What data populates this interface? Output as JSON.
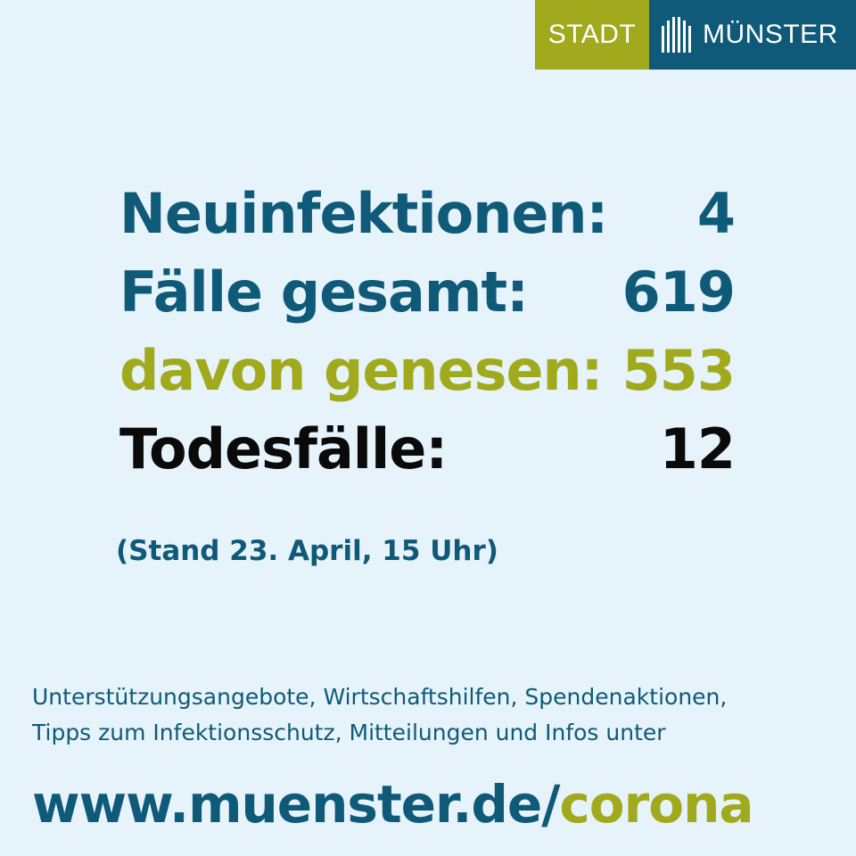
{
  "logo": {
    "stadt": "STADT",
    "muenster": "MÜNSTER",
    "icon": "muenster-cathedral-logo-icon",
    "colors": {
      "stadt_bg": "#a0aa1c",
      "muenster_bg": "#0f5a78"
    }
  },
  "stats": [
    {
      "label": "Neuinfektionen:",
      "value": "4",
      "color": "#0f5a78"
    },
    {
      "label": "Fälle gesamt:",
      "value": "619",
      "color": "#0f5a78"
    },
    {
      "label": "davon genesen:",
      "value": "553",
      "color": "#a0aa1c"
    },
    {
      "label": "Todesfälle:",
      "value": "12",
      "color": "#0a0a0a"
    }
  ],
  "stand": "(Stand 23. April, 15 Uhr)",
  "footer": {
    "line1": "Unterstützungsangebote, Wirtschaftshilfen, Spendenaktionen,",
    "line2": "Tipps zum Infektionsschutz, Mitteilungen und Infos unter"
  },
  "url": {
    "base": "www.muenster.de/",
    "path": "corona",
    "base_color": "#0f5a78",
    "path_color": "#a0aa1c"
  },
  "colors": {
    "background": "#e6f3fa",
    "primary": "#0f5a78",
    "accent": "#a0aa1c",
    "dark": "#0a0a0a"
  }
}
